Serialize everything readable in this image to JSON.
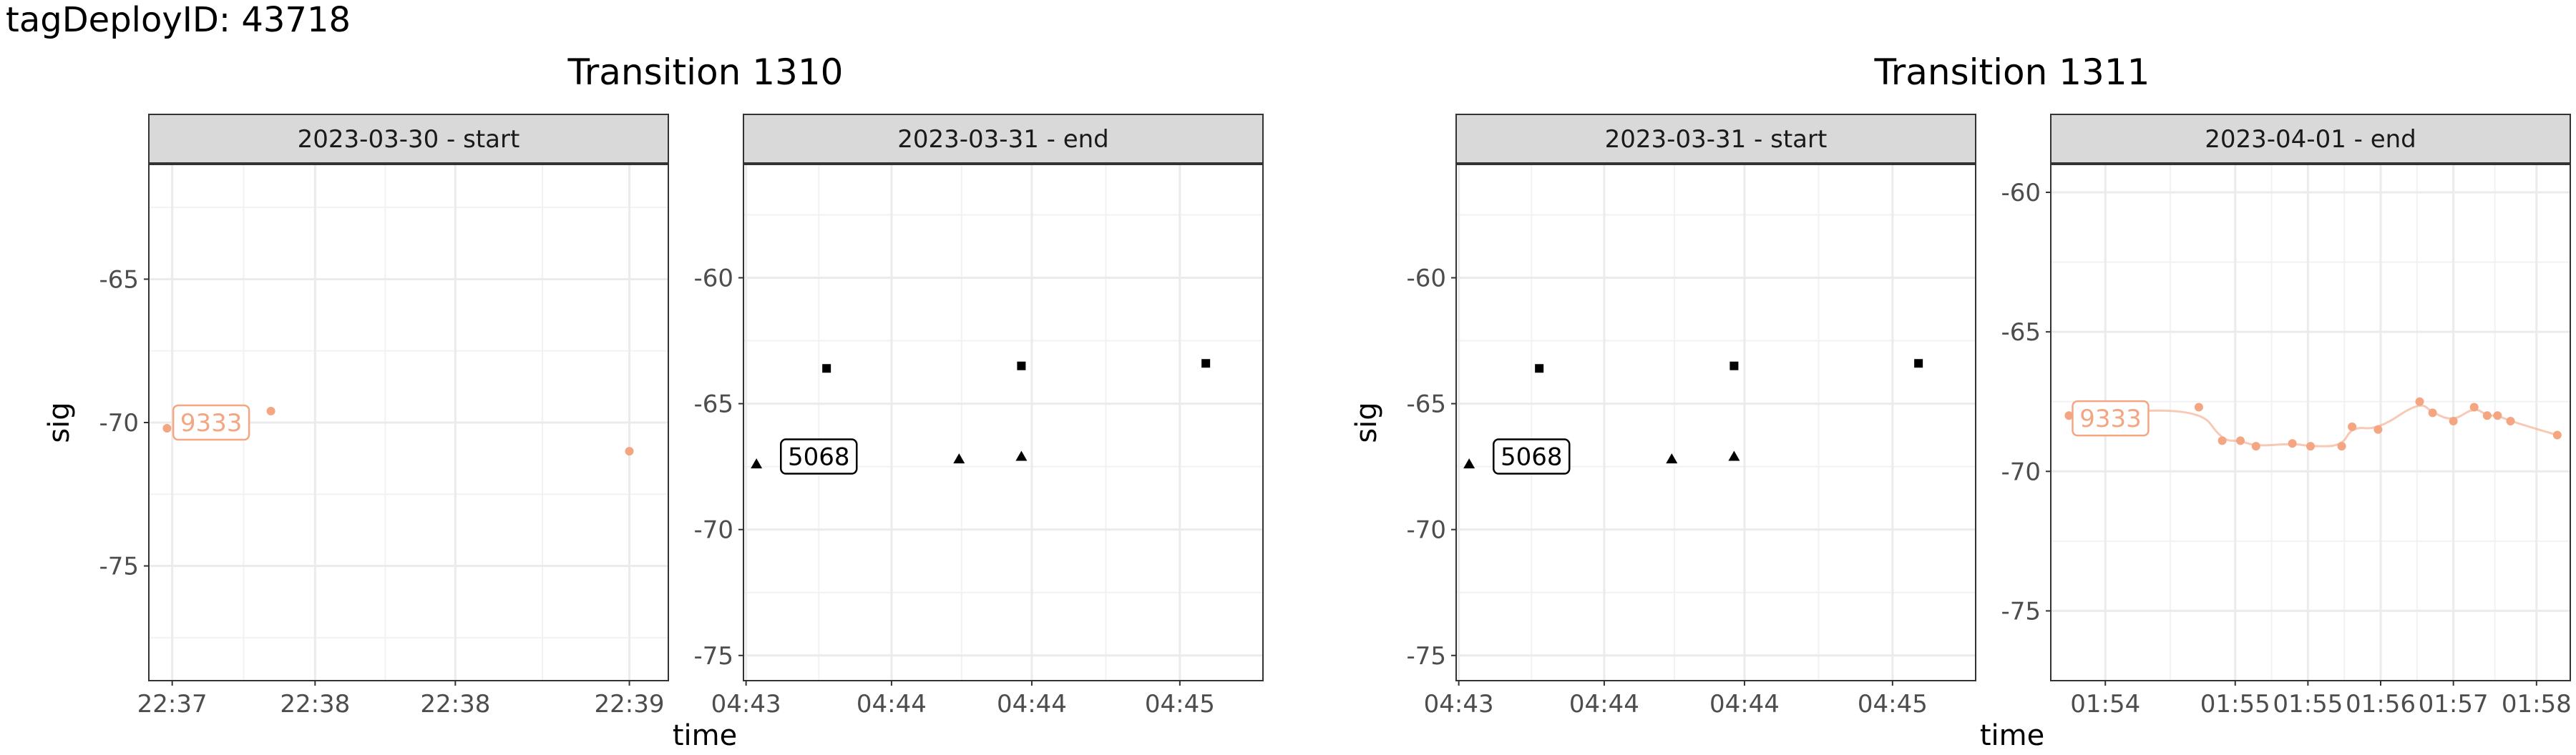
{
  "header": {
    "title": "tagDeployID: 43718"
  },
  "chart_data": [
    {
      "type": "scatter",
      "title": "Transition 1310",
      "facet": "2023-03-30 - start",
      "ylabel": "sig",
      "xlabel": "",
      "ylim": [
        -79,
        -61
      ],
      "grid": true,
      "x_ticks": [
        "22:37",
        "22:38",
        "22:38",
        "22:39"
      ],
      "y_ticks": [
        -65,
        -70,
        -75
      ],
      "series": [
        {
          "name": "9333",
          "color": "#f4a582",
          "shape": "circle",
          "line": false,
          "points": [
            [
              0.7,
              -70.2
            ],
            [
              4.7,
              -69.6
            ],
            [
              18.5,
              -71.0
            ]
          ]
        }
      ],
      "labels": [
        {
          "text": "9333",
          "x": 2.4,
          "y": -70.0,
          "color": "#f4a582"
        }
      ]
    },
    {
      "type": "scatter",
      "title": "",
      "facet": "2023-03-31 - end",
      "ylabel": "",
      "xlabel": "time",
      "ylim": [
        -76,
        -55.5
      ],
      "grid": true,
      "x_ticks": [
        "04:43",
        "04:44",
        "04:44",
        "04:45"
      ],
      "y_ticks": [
        -60,
        -65,
        -70,
        -75
      ],
      "series": [
        {
          "name": "",
          "color": "#000000",
          "shape": "square",
          "line": false,
          "points": [
            [
              3.2,
              -63.6
            ],
            [
              10.7,
              -63.5
            ],
            [
              17.8,
              -63.4
            ]
          ]
        },
        {
          "name": "5068",
          "color": "#000000",
          "shape": "triangle",
          "line": false,
          "points": [
            [
              0.5,
              -67.4
            ],
            [
              8.3,
              -67.2
            ],
            [
              10.7,
              -67.1
            ]
          ]
        }
      ],
      "labels": [
        {
          "text": "5068",
          "x": 2.9,
          "y": -67.1,
          "color": "#000000"
        }
      ]
    },
    {
      "type": "scatter",
      "title": "Transition 1311",
      "facet": "2023-03-31 - start",
      "ylabel": "sig",
      "xlabel": "",
      "ylim": [
        -76,
        -55.5
      ],
      "grid": true,
      "x_ticks": [
        "04:43",
        "04:44",
        "04:44",
        "04:45"
      ],
      "y_ticks": [
        -60,
        -65,
        -70,
        -75
      ],
      "series": [
        {
          "name": "",
          "color": "#000000",
          "shape": "square",
          "line": false,
          "points": [
            [
              3.2,
              -63.6
            ],
            [
              10.7,
              -63.5
            ],
            [
              17.8,
              -63.4
            ]
          ]
        },
        {
          "name": "5068",
          "color": "#000000",
          "shape": "triangle",
          "line": false,
          "points": [
            [
              0.5,
              -67.4
            ],
            [
              8.3,
              -67.2
            ],
            [
              10.7,
              -67.1
            ]
          ]
        }
      ],
      "labels": [
        {
          "text": "5068",
          "x": 2.9,
          "y": -67.1,
          "color": "#000000"
        }
      ]
    },
    {
      "type": "scatter",
      "title": "",
      "facet": "2023-04-01 - end",
      "ylabel": "",
      "xlabel": "time",
      "ylim": [
        -77.5,
        -59
      ],
      "grid": true,
      "x_ticks": [
        "01:54",
        "01:55",
        "01:55",
        "01:56",
        "01:57",
        "01:58"
      ],
      "y_ticks": [
        -60,
        -65,
        -70,
        -75
      ],
      "series": [
        {
          "name": "9333",
          "color": "#f4a582",
          "shape": "circle",
          "line": true,
          "points": [
            [
              0.7,
              -68.0
            ],
            [
              5.7,
              -67.7
            ],
            [
              6.6,
              -68.9
            ],
            [
              7.3,
              -68.9
            ],
            [
              7.9,
              -69.1
            ],
            [
              9.3,
              -69.0
            ],
            [
              10.0,
              -69.1
            ],
            [
              11.2,
              -69.1
            ],
            [
              11.6,
              -68.4
            ],
            [
              12.6,
              -68.5
            ],
            [
              14.2,
              -67.5
            ],
            [
              14.7,
              -67.9
            ],
            [
              15.5,
              -68.2
            ],
            [
              16.3,
              -67.7
            ],
            [
              16.8,
              -68.0
            ],
            [
              17.2,
              -68.0
            ],
            [
              17.7,
              -68.2
            ],
            [
              19.5,
              -68.7
            ]
          ]
        }
      ],
      "labels": [
        {
          "text": "9333",
          "x": 2.3,
          "y": -68.1,
          "color": "#f4a582"
        }
      ]
    }
  ]
}
